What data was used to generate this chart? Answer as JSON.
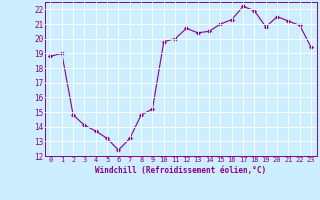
{
  "x": [
    0,
    1,
    2,
    3,
    4,
    5,
    6,
    7,
    8,
    9,
    10,
    11,
    12,
    13,
    14,
    15,
    16,
    17,
    18,
    19,
    20,
    21,
    22,
    23
  ],
  "y": [
    18.8,
    19.0,
    14.8,
    14.1,
    13.7,
    13.2,
    12.4,
    13.2,
    14.8,
    15.2,
    19.8,
    20.0,
    20.7,
    20.4,
    20.5,
    21.0,
    21.3,
    22.2,
    21.9,
    20.8,
    21.5,
    21.2,
    20.9,
    19.4
  ],
  "line_color": "#880088",
  "marker": "D",
  "marker_size": 2,
  "bg_color": "#cceeff",
  "grid_color": "#aadddd",
  "xlabel": "Windchill (Refroidissement éolien,°C)",
  "xlabel_color": "#880088",
  "tick_color": "#880088",
  "spine_color": "#880088",
  "ylim": [
    12,
    22.5
  ],
  "xlim": [
    -0.5,
    23.5
  ],
  "yticks": [
    12,
    13,
    14,
    15,
    16,
    17,
    18,
    19,
    20,
    21,
    22
  ],
  "xticks": [
    0,
    1,
    2,
    3,
    4,
    5,
    6,
    7,
    8,
    9,
    10,
    11,
    12,
    13,
    14,
    15,
    16,
    17,
    18,
    19,
    20,
    21,
    22,
    23
  ],
  "xtick_labels": [
    "0",
    "1",
    "2",
    "3",
    "4",
    "5",
    "6",
    "7",
    "8",
    "9",
    "10",
    "11",
    "12",
    "13",
    "14",
    "15",
    "16",
    "17",
    "18",
    "19",
    "20",
    "21",
    "22",
    "23"
  ]
}
